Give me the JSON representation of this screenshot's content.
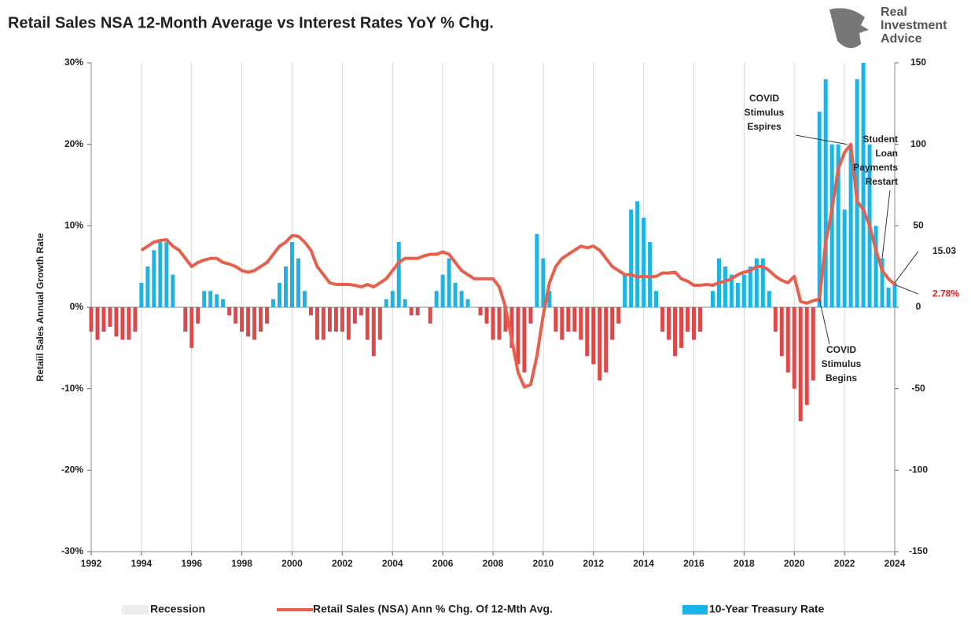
{
  "chart_data": {
    "type": "bar_line",
    "title": "Retail Sales NSA 12-Month Average vs Interest Rates YoY % Chg.",
    "logo": [
      "Real",
      "Investment",
      "Advice"
    ],
    "ylabel": "Retaiil Sales Annual Growth Rate",
    "xlim": [
      1992,
      2024
    ],
    "xticks": [
      1992,
      1994,
      1996,
      1998,
      2000,
      2002,
      2004,
      2006,
      2008,
      2010,
      2012,
      2014,
      2016,
      2018,
      2020,
      2022,
      2024
    ],
    "ylim": [
      -30,
      30
    ],
    "yticks": [
      {
        "value": -30,
        "label": "-30%"
      },
      {
        "value": -20,
        "label": "-20%"
      },
      {
        "value": -10,
        "label": "-10%"
      },
      {
        "value": 0,
        "label": "0%"
      },
      {
        "value": 10,
        "label": "10%"
      },
      {
        "value": 20,
        "label": "20%"
      },
      {
        "value": 30,
        "label": "30%"
      }
    ],
    "y2lim": [
      -150,
      150
    ],
    "y2ticks": [
      -150,
      -100,
      -50,
      0,
      50,
      100,
      150
    ],
    "grid": "x",
    "recession": {
      "name": "Recession",
      "color": "#ececec"
    },
    "series": [
      {
        "name": "Retail Sales (NSA) Ann % Chg. Of 12-Mth Avg.",
        "type": "line",
        "color": "#e8604c",
        "label_color": "#e02020",
        "x_start": 1994,
        "x_step": 0.25,
        "values": [
          7,
          7.5,
          8,
          8.2,
          8.3,
          7.5,
          7,
          6,
          5,
          5.5,
          5.8,
          6,
          6,
          5.5,
          5.3,
          5,
          4.5,
          4.3,
          4.5,
          5,
          5.5,
          6.5,
          7.5,
          8,
          8.8,
          8.7,
          8,
          7,
          5,
          4,
          3,
          2.8,
          2.8,
          2.8,
          2.7,
          2.5,
          2.8,
          2.5,
          3,
          3.5,
          4.5,
          5.5,
          6,
          6,
          6,
          6.3,
          6.5,
          6.5,
          6.8,
          6.5,
          5.5,
          4.5,
          4,
          3.5,
          3.5,
          3.5,
          3.5,
          2.5,
          0,
          -4,
          -8,
          -9.8,
          -9.5,
          -6,
          -1,
          3,
          5,
          6,
          6.5,
          7,
          7.5,
          7.3,
          7.5,
          7,
          6,
          5,
          4.5,
          4,
          4,
          3.7,
          3.8,
          3.7,
          3.8,
          4.2,
          4.2,
          4.3,
          3.5,
          3.2,
          2.7,
          2.7,
          2.8,
          2.7,
          3,
          3.2,
          3.5,
          4,
          4.3,
          4.5,
          5,
          5,
          4.5,
          3.8,
          3.3,
          3,
          3.8,
          0.7,
          0.5,
          0.8,
          1,
          8,
          12,
          17,
          19,
          20,
          13,
          12,
          10,
          7,
          4.5,
          3.5,
          2.78
        ],
        "end_label": "2.78%"
      },
      {
        "name": "10-Year Treasury Rate",
        "type": "bar",
        "axis": "y2",
        "color": "#1ab4e6",
        "negative_color": "#e04848",
        "x_start": 1992,
        "x_step": 0.25,
        "values": [
          -15,
          -20,
          -15,
          -12,
          -18,
          -20,
          -20,
          -15,
          15,
          25,
          35,
          40,
          40,
          20,
          0,
          -15,
          -25,
          -10,
          10,
          10,
          8,
          5,
          -5,
          -10,
          -15,
          -18,
          -20,
          -15,
          -10,
          5,
          15,
          25,
          40,
          30,
          10,
          -5,
          -20,
          -20,
          -15,
          -15,
          -15,
          -20,
          -10,
          -5,
          -20,
          -30,
          -20,
          5,
          10,
          40,
          5,
          -5,
          -5,
          0,
          -10,
          10,
          20,
          30,
          15,
          10,
          5,
          0,
          -5,
          -10,
          -20,
          -20,
          -15,
          -25,
          -35,
          -40,
          -10,
          45,
          30,
          10,
          -15,
          -20,
          -15,
          -15,
          -20,
          -30,
          -35,
          -45,
          -40,
          -20,
          -10,
          20,
          60,
          65,
          55,
          40,
          10,
          -15,
          -20,
          -30,
          -25,
          -15,
          -20,
          -15,
          0,
          10,
          30,
          25,
          20,
          15,
          20,
          25,
          30,
          30,
          10,
          -15,
          -30,
          -40,
          -50,
          -70,
          -60,
          -45,
          120,
          140,
          100,
          100,
          60,
          100,
          140,
          150,
          100,
          50,
          30,
          12,
          15.03
        ]
      }
    ],
    "annotations": [
      {
        "lines": [
          "COVID",
          "Stimulus",
          "Espires"
        ],
        "x": 2022.1,
        "y": 20
      },
      {
        "lines": [
          "Student",
          "Loan",
          "Payments",
          "Restart"
        ],
        "x": 2023.5,
        "y": 6
      },
      {
        "lines": [
          "COVID",
          "Stimulus",
          "Begins"
        ],
        "x": 2021.0,
        "y": 1
      }
    ]
  }
}
